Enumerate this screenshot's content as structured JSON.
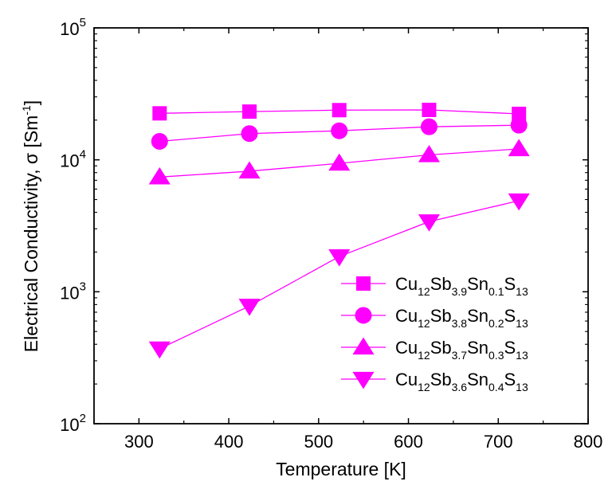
{
  "chart_data": {
    "type": "scatter",
    "xlabel": "Temperature [K]",
    "ylabel": "Electrical Conductivity, σ [Sm",
    "ylabel_sup": "-1",
    "ylabel_close": "]",
    "xlim": [
      250,
      800
    ],
    "ylim": [
      100,
      100000
    ],
    "yscale": "log",
    "grid": false,
    "legend_position": "lower-right",
    "color": "#ff00ff",
    "x_ticks": [
      300,
      400,
      500,
      600,
      700,
      800
    ],
    "x_tick_labels": [
      "300",
      "400",
      "500",
      "600",
      "700",
      "800"
    ],
    "y_ticks": [
      100,
      1000,
      10000,
      100000
    ],
    "y_tick_labels": [
      {
        "base": "10",
        "exp": "2"
      },
      {
        "base": "10",
        "exp": "3"
      },
      {
        "base": "10",
        "exp": "4"
      },
      {
        "base": "10",
        "exp": "5"
      }
    ],
    "x": [
      323,
      423,
      523,
      623,
      723
    ],
    "series": [
      {
        "name": "Cu12Sb3.9Sn0.1S13",
        "label_parts": [
          [
            "Cu",
            ""
          ],
          [
            "12",
            "sub"
          ],
          [
            "Sb",
            ""
          ],
          [
            "3.9",
            "sub"
          ],
          [
            "Sn",
            ""
          ],
          [
            "0.1",
            "sub"
          ],
          [
            "S",
            ""
          ],
          [
            "13",
            "sub"
          ]
        ],
        "marker": "square",
        "values": [
          22500,
          23200,
          23800,
          23900,
          22300
        ]
      },
      {
        "name": "Cu12Sb3.8Sn0.2S13",
        "label_parts": [
          [
            "Cu",
            ""
          ],
          [
            "12",
            "sub"
          ],
          [
            "Sb",
            ""
          ],
          [
            "3.8",
            "sub"
          ],
          [
            "Sn",
            ""
          ],
          [
            "0.2",
            "sub"
          ],
          [
            "S",
            ""
          ],
          [
            "13",
            "sub"
          ]
        ],
        "marker": "circle",
        "values": [
          13800,
          15800,
          16600,
          17800,
          18300
        ]
      },
      {
        "name": "Cu12Sb3.7Sn0.3S13",
        "label_parts": [
          [
            "Cu",
            ""
          ],
          [
            "12",
            "sub"
          ],
          [
            "Sb",
            ""
          ],
          [
            "3.7",
            "sub"
          ],
          [
            "Sn",
            ""
          ],
          [
            "0.3",
            "sub"
          ],
          [
            "S",
            ""
          ],
          [
            "13",
            "sub"
          ]
        ],
        "marker": "triangle-up",
        "values": [
          7400,
          8200,
          9400,
          10900,
          12100
        ]
      },
      {
        "name": "Cu12Sb3.6Sn0.4S13",
        "label_parts": [
          [
            "Cu",
            ""
          ],
          [
            "12",
            "sub"
          ],
          [
            "Sb",
            ""
          ],
          [
            "3.6",
            "sub"
          ],
          [
            "Sn",
            ""
          ],
          [
            "0.4",
            "sub"
          ],
          [
            "S",
            ""
          ],
          [
            "13",
            "sub"
          ]
        ],
        "marker": "triangle-down",
        "values": [
          370,
          780,
          1850,
          3400,
          4900
        ]
      }
    ]
  }
}
